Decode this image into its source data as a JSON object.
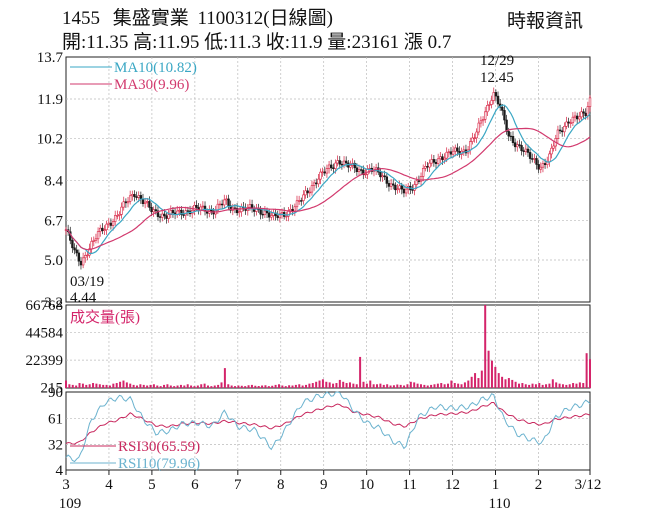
{
  "header": {
    "code": "1455",
    "name": "集盛實業",
    "date_label": "1100312(日線圖)",
    "source": "時報資訊",
    "quote": "開:11.35 高:11.95 低:11.3 收:11.9 量:23161 漲 0.7"
  },
  "chart_data": [
    {
      "type": "candlestick",
      "panel": "price",
      "ylim": [
        3.2,
        13.7
      ],
      "yticks": [
        "13.7",
        "11.9",
        "10.2",
        "8.4",
        "6.7",
        "5.0",
        "3.2"
      ],
      "series": [
        {
          "name": "MA10",
          "label": "MA10(10.82)",
          "color": "#3aa7c4"
        },
        {
          "name": "MA30",
          "label": "MA30(9.96)",
          "color": "#d23a6e"
        }
      ],
      "annotations": [
        {
          "label_date": "12/29",
          "label_value": "12.45",
          "kind": "high"
        },
        {
          "label_date": "03/19",
          "label_value": "4.44",
          "kind": "low"
        }
      ],
      "close_path": [
        {
          "month": 3.0,
          "close": 6.3
        },
        {
          "month": 3.2,
          "close": 5.3
        },
        {
          "month": 3.35,
          "close": 4.9
        },
        {
          "month": 3.5,
          "close": 5.4
        },
        {
          "month": 3.75,
          "close": 6.1
        },
        {
          "month": 4.0,
          "close": 6.6
        },
        {
          "month": 4.2,
          "close": 6.9
        },
        {
          "month": 4.45,
          "close": 7.6
        },
        {
          "month": 4.6,
          "close": 7.9
        },
        {
          "month": 4.75,
          "close": 7.6
        },
        {
          "month": 5.0,
          "close": 7.1
        },
        {
          "month": 5.3,
          "close": 6.9
        },
        {
          "month": 5.6,
          "close": 7.0
        },
        {
          "month": 6.0,
          "close": 7.2
        },
        {
          "month": 6.4,
          "close": 7.1
        },
        {
          "month": 6.7,
          "close": 7.5
        },
        {
          "month": 6.85,
          "close": 7.2
        },
        {
          "month": 7.2,
          "close": 7.2
        },
        {
          "month": 7.6,
          "close": 7.1
        },
        {
          "month": 7.85,
          "close": 6.8
        },
        {
          "month": 8.1,
          "close": 7.0
        },
        {
          "month": 8.4,
          "close": 7.4
        },
        {
          "month": 8.65,
          "close": 8.0
        },
        {
          "month": 8.9,
          "close": 8.6
        },
        {
          "month": 9.2,
          "close": 9.0
        },
        {
          "month": 9.35,
          "close": 9.3
        },
        {
          "month": 9.6,
          "close": 9.0
        },
        {
          "month": 9.9,
          "close": 8.8
        },
        {
          "month": 10.1,
          "close": 8.9
        },
        {
          "month": 10.35,
          "close": 8.6
        },
        {
          "month": 10.6,
          "close": 8.2
        },
        {
          "month": 10.85,
          "close": 7.9
        },
        {
          "month": 11.1,
          "close": 8.2
        },
        {
          "month": 11.4,
          "close": 9.0
        },
        {
          "month": 11.7,
          "close": 9.4
        },
        {
          "month": 12.0,
          "close": 9.6
        },
        {
          "month": 12.3,
          "close": 9.7
        },
        {
          "month": 12.55,
          "close": 10.4
        },
        {
          "month": 12.75,
          "close": 11.3
        },
        {
          "month": 12.95,
          "close": 12.2
        },
        {
          "month": 13.1,
          "close": 11.6
        },
        {
          "month": 13.3,
          "close": 10.3
        },
        {
          "month": 13.6,
          "close": 9.8
        },
        {
          "month": 13.85,
          "close": 9.3
        },
        {
          "month": 14.05,
          "close": 9.0
        },
        {
          "month": 14.25,
          "close": 9.4
        },
        {
          "month": 14.45,
          "close": 10.4
        },
        {
          "month": 14.7,
          "close": 11.0
        },
        {
          "month": 14.95,
          "close": 11.1
        },
        {
          "month": 15.1,
          "close": 11.3
        },
        {
          "month": 15.2,
          "close": 11.9
        }
      ]
    },
    {
      "type": "bar",
      "panel": "volume",
      "ylabel": "成交量(張)",
      "ylim": [
        0,
        66768
      ],
      "yticks": [
        "66768",
        "44584",
        "22399",
        "215"
      ],
      "color": "#d4246a",
      "values": [
        6000,
        3000,
        2500,
        2000,
        4000,
        3500,
        2500,
        3000,
        4000,
        3500,
        3000,
        2500,
        2500,
        2000,
        3500,
        4000,
        5000,
        6000,
        4500,
        3500,
        2500,
        2000,
        3000,
        2500,
        2000,
        2500,
        3000,
        2000,
        1500,
        2500,
        3000,
        2000,
        1500,
        2000,
        2500,
        2000,
        3000,
        2000,
        1500,
        2000,
        3000,
        3500,
        2000,
        1500,
        2000,
        2500,
        4500,
        16000,
        3000,
        2000,
        1500,
        2000,
        1800,
        1500,
        2200,
        2500,
        1800,
        1600,
        2000,
        2200,
        1500,
        1800,
        2500,
        3000,
        2000,
        1500,
        2200,
        2000,
        2500,
        3000,
        2000,
        2500,
        3500,
        4000,
        5000,
        6000,
        7000,
        5000,
        4500,
        3500,
        4000,
        6500,
        5000,
        4000,
        4500,
        3500,
        3000,
        25000,
        5000,
        3500,
        6000,
        3000,
        3000,
        3500,
        2500,
        3000,
        2000,
        2200,
        2800,
        2500,
        2000,
        3000,
        5000,
        4500,
        3500,
        3000,
        2500,
        2000,
        2500,
        3000,
        3500,
        4000,
        3000,
        3500,
        6000,
        4000,
        3500,
        3000,
        4500,
        6000,
        9000,
        12000,
        8000,
        14000,
        66768,
        30000,
        22000,
        17000,
        12000,
        9000,
        7000,
        8000,
        6500,
        5000,
        3500,
        4000,
        3000,
        2500,
        3500,
        3000,
        4000,
        2500,
        3000,
        3500,
        7000,
        4500,
        3500,
        3000,
        2500,
        3000,
        4000,
        3500,
        4500,
        4000,
        28000,
        23161
      ]
    },
    {
      "type": "line",
      "panel": "rsi",
      "ylim": [
        4,
        90
      ],
      "yticks": [
        "90",
        "61",
        "32",
        "4"
      ],
      "series": [
        {
          "name": "RSI30",
          "label": "RSI30(65.59)",
          "color": "#c8285e",
          "points": [
            {
              "month": 3.0,
              "value": 33
            },
            {
              "month": 3.3,
              "value": 34
            },
            {
              "month": 3.6,
              "value": 46
            },
            {
              "month": 3.9,
              "value": 55
            },
            {
              "month": 4.2,
              "value": 59
            },
            {
              "month": 4.5,
              "value": 66
            },
            {
              "month": 4.8,
              "value": 60
            },
            {
              "month": 5.1,
              "value": 53
            },
            {
              "month": 5.4,
              "value": 52
            },
            {
              "month": 5.7,
              "value": 55
            },
            {
              "month": 6.1,
              "value": 56
            },
            {
              "month": 6.4,
              "value": 55
            },
            {
              "month": 6.7,
              "value": 58
            },
            {
              "month": 7.0,
              "value": 56
            },
            {
              "month": 7.4,
              "value": 54
            },
            {
              "month": 7.8,
              "value": 50
            },
            {
              "month": 8.1,
              "value": 55
            },
            {
              "month": 8.5,
              "value": 65
            },
            {
              "month": 8.9,
              "value": 71
            },
            {
              "month": 9.2,
              "value": 75
            },
            {
              "month": 9.4,
              "value": 76
            },
            {
              "month": 9.7,
              "value": 68
            },
            {
              "month": 10.0,
              "value": 65
            },
            {
              "month": 10.3,
              "value": 62
            },
            {
              "month": 10.6,
              "value": 55
            },
            {
              "month": 10.9,
              "value": 52
            },
            {
              "month": 11.2,
              "value": 60
            },
            {
              "month": 11.6,
              "value": 65
            },
            {
              "month": 12.0,
              "value": 66
            },
            {
              "month": 12.4,
              "value": 68
            },
            {
              "month": 12.7,
              "value": 74
            },
            {
              "month": 12.95,
              "value": 78
            },
            {
              "month": 13.2,
              "value": 68
            },
            {
              "month": 13.5,
              "value": 60
            },
            {
              "month": 13.8,
              "value": 56
            },
            {
              "month": 14.1,
              "value": 54
            },
            {
              "month": 14.4,
              "value": 60
            },
            {
              "month": 14.7,
              "value": 62
            },
            {
              "month": 15.0,
              "value": 64
            },
            {
              "month": 15.2,
              "value": 65.59
            }
          ]
        },
        {
          "name": "RSI10",
          "label": "RSI10(79.96)",
          "color": "#6cb3cf",
          "points": [
            {
              "month": 3.0,
              "value": 18
            },
            {
              "month": 3.3,
              "value": 15
            },
            {
              "month": 3.6,
              "value": 60
            },
            {
              "month": 3.9,
              "value": 78
            },
            {
              "month": 4.2,
              "value": 84
            },
            {
              "month": 4.5,
              "value": 82
            },
            {
              "month": 4.8,
              "value": 60
            },
            {
              "month": 5.1,
              "value": 45
            },
            {
              "month": 5.4,
              "value": 47
            },
            {
              "month": 5.7,
              "value": 55
            },
            {
              "month": 6.1,
              "value": 56
            },
            {
              "month": 6.4,
              "value": 52
            },
            {
              "month": 6.7,
              "value": 68
            },
            {
              "month": 7.0,
              "value": 52
            },
            {
              "month": 7.4,
              "value": 48
            },
            {
              "month": 7.8,
              "value": 28
            },
            {
              "month": 8.1,
              "value": 48
            },
            {
              "month": 8.5,
              "value": 78
            },
            {
              "month": 8.9,
              "value": 86
            },
            {
              "month": 9.2,
              "value": 88
            },
            {
              "month": 9.4,
              "value": 89
            },
            {
              "month": 9.7,
              "value": 70
            },
            {
              "month": 10.0,
              "value": 56
            },
            {
              "month": 10.3,
              "value": 50
            },
            {
              "month": 10.6,
              "value": 36
            },
            {
              "month": 10.9,
              "value": 30
            },
            {
              "month": 11.2,
              "value": 62
            },
            {
              "month": 11.6,
              "value": 74
            },
            {
              "month": 12.0,
              "value": 72
            },
            {
              "month": 12.4,
              "value": 74
            },
            {
              "month": 12.7,
              "value": 82
            },
            {
              "month": 12.95,
              "value": 86
            },
            {
              "month": 13.2,
              "value": 60
            },
            {
              "month": 13.5,
              "value": 44
            },
            {
              "month": 13.8,
              "value": 38
            },
            {
              "month": 14.1,
              "value": 34
            },
            {
              "month": 14.4,
              "value": 62
            },
            {
              "month": 14.7,
              "value": 72
            },
            {
              "month": 15.0,
              "value": 76
            },
            {
              "month": 15.2,
              "value": 79.96
            }
          ]
        }
      ]
    }
  ],
  "x_axis": {
    "ticks": [
      {
        "label": "3",
        "month": 3
      },
      {
        "label": "4",
        "month": 4
      },
      {
        "label": "5",
        "month": 5
      },
      {
        "label": "6",
        "month": 6
      },
      {
        "label": "7",
        "month": 7
      },
      {
        "label": "8",
        "month": 8
      },
      {
        "label": "9",
        "month": 9
      },
      {
        "label": "10",
        "month": 10
      },
      {
        "label": "11",
        "month": 11
      },
      {
        "label": "12",
        "month": 12
      },
      {
        "label": "1",
        "month": 13
      },
      {
        "label": "2",
        "month": 14
      },
      {
        "label": "3/12",
        "month": 15.2
      }
    ],
    "year_labels": [
      {
        "label": "109",
        "month": 3
      },
      {
        "label": "110",
        "month": 13
      }
    ]
  }
}
